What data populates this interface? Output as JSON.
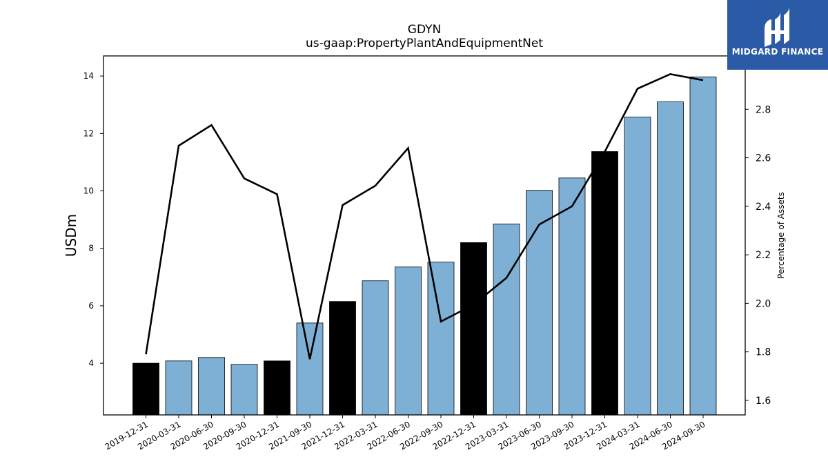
{
  "chart_data": {
    "type": "bar",
    "title": "GDYN",
    "subtitle": "us-gaap:PropertyPlantAndEquipmentNet",
    "ylabel": "USDm",
    "y2label": "Percentage of Assets",
    "categories": [
      "2019-12-31",
      "2020-03-31",
      "2020-06-30",
      "2020-09-30",
      "2020-12-31",
      "2021-09-30",
      "2021-12-31",
      "2022-03-31",
      "2022-06-30",
      "2022-09-30",
      "2022-12-31",
      "2023-03-31",
      "2023-06-30",
      "2023-09-30",
      "2023-12-31",
      "2024-03-31",
      "2024-06-30",
      "2024-09-30"
    ],
    "series": [
      {
        "type": "bar",
        "axis": "left",
        "values": [
          4.0,
          4.08,
          4.2,
          3.96,
          4.08,
          5.4,
          6.15,
          6.87,
          7.35,
          7.52,
          8.2,
          8.85,
          10.02,
          10.45,
          11.37,
          12.57,
          13.1,
          13.97
        ],
        "colors": [
          "#000000",
          "#7eb0d5",
          "#7eb0d5",
          "#7eb0d5",
          "#000000",
          "#7eb0d5",
          "#000000",
          "#7eb0d5",
          "#7eb0d5",
          "#7eb0d5",
          "#000000",
          "#7eb0d5",
          "#7eb0d5",
          "#7eb0d5",
          "#000000",
          "#7eb0d5",
          "#7eb0d5",
          "#7eb0d5"
        ]
      },
      {
        "type": "line",
        "axis": "right",
        "color": "#000000",
        "values": [
          1.79,
          2.65,
          2.735,
          2.515,
          2.45,
          1.77,
          2.405,
          2.485,
          2.64,
          1.925,
          1.995,
          2.105,
          2.325,
          2.4,
          2.625,
          2.885,
          2.945,
          2.92
        ]
      }
    ],
    "ylim": [
      2.2,
      14.7
    ],
    "yticks": [
      4,
      6,
      8,
      10,
      12,
      14
    ],
    "y2lim": [
      1.54,
      3.02
    ],
    "y2ticks": [
      "1.6",
      "1.8",
      "2.0",
      "2.2",
      "2.4",
      "2.6",
      "2.8"
    ],
    "bar_colors": {
      "highlight": "#000000",
      "regular": "#7eb0d5"
    },
    "grid": false,
    "legend": "none"
  },
  "branding": {
    "logo_text": "MIDGARD FINANCE",
    "logo_icon": "midgard-finance-logo-icon",
    "background": "#2b5aa7"
  }
}
